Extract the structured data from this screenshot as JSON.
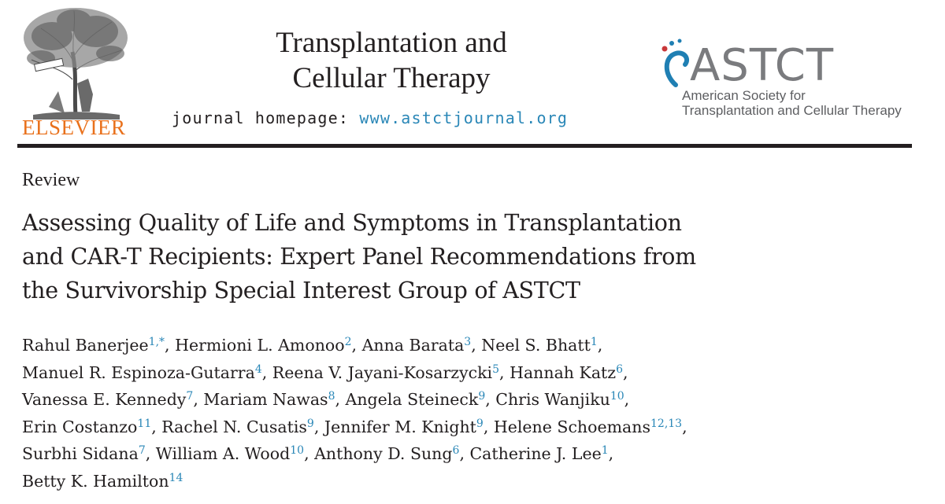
{
  "publisher": {
    "name": "ELSEVIER"
  },
  "journal": {
    "title_line1": "Transplantation and",
    "title_line2": "Cellular Therapy",
    "homepage_label": "journal homepage: ",
    "homepage_url": "www.astctjournal.org"
  },
  "society": {
    "acronym": "ASTCT",
    "full_name_line1": "American Society for",
    "full_name_line2": "Transplantation and Cellular Therapy"
  },
  "article": {
    "type": "Review",
    "title_lines": [
      "Assessing Quality of Life and Symptoms in Transplantation",
      "and CAR-T Recipients: Expert Panel Recommendations from",
      "the Survivorship Special Interest Group of ASTCT"
    ]
  },
  "authors": [
    {
      "name": "Rahul Banerjee",
      "aff": "1,*"
    },
    {
      "name": "Hermioni L. Amonoo",
      "aff": "2"
    },
    {
      "name": "Anna Barata",
      "aff": "3"
    },
    {
      "name": "Neel S. Bhatt",
      "aff": "1"
    },
    {
      "name": "Manuel R. Espinoza-Gutarra",
      "aff": "4"
    },
    {
      "name": "Reena V. Jayani-Kosarzycki",
      "aff": "5"
    },
    {
      "name": "Hannah Katz",
      "aff": "6"
    },
    {
      "name": "Vanessa E. Kennedy",
      "aff": "7"
    },
    {
      "name": "Mariam Nawas",
      "aff": "8"
    },
    {
      "name": "Angela Steineck",
      "aff": "9"
    },
    {
      "name": "Chris Wanjiku",
      "aff": "10"
    },
    {
      "name": "Erin Costanzo",
      "aff": "11"
    },
    {
      "name": "Rachel N. Cusatis",
      "aff": "9"
    },
    {
      "name": "Jennifer M. Knight",
      "aff": "9"
    },
    {
      "name": "Helene Schoemans",
      "aff": "12,13"
    },
    {
      "name": "Surbhi Sidana",
      "aff": "7"
    },
    {
      "name": "William A. Wood",
      "aff": "10"
    },
    {
      "name": "Anthony D. Sung",
      "aff": "6"
    },
    {
      "name": "Catherine J. Lee",
      "aff": "1"
    },
    {
      "name": "Betty K. Hamilton",
      "aff": "14"
    }
  ],
  "colors": {
    "elsevier_orange": "#e9711c",
    "link_blue": "#2a87b7",
    "astct_gray": "#7a7b7e",
    "astct_blue": "#1f7fb3",
    "astct_red": "#c8373a"
  }
}
